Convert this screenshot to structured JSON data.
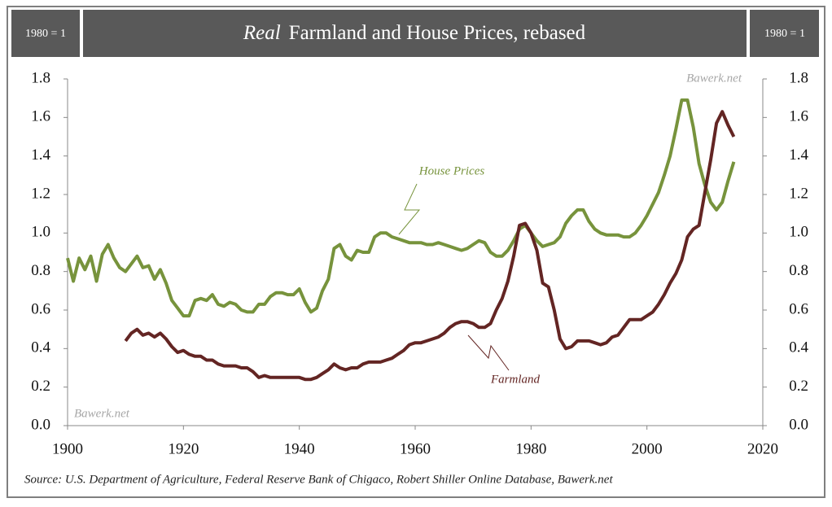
{
  "chart_data": {
    "type": "line",
    "title_emphasis": "Real",
    "title": "Farmland and House Prices, rebased",
    "base_note": "1980 = 1",
    "source": "Source: U.S. Department of Agriculture, Federal Reserve Bank of Chigaco, Robert Shiller Online Database, Bawerk.net",
    "watermark": "Bawerk.net",
    "x": [
      1900,
      1901,
      1902,
      1903,
      1904,
      1905,
      1906,
      1907,
      1908,
      1909,
      1910,
      1911,
      1912,
      1913,
      1914,
      1915,
      1916,
      1917,
      1918,
      1919,
      1920,
      1921,
      1922,
      1923,
      1924,
      1925,
      1926,
      1927,
      1928,
      1929,
      1930,
      1931,
      1932,
      1933,
      1934,
      1935,
      1936,
      1937,
      1938,
      1939,
      1940,
      1941,
      1942,
      1943,
      1944,
      1945,
      1946,
      1947,
      1948,
      1949,
      1950,
      1951,
      1952,
      1953,
      1954,
      1955,
      1956,
      1957,
      1958,
      1959,
      1960,
      1961,
      1962,
      1963,
      1964,
      1965,
      1966,
      1967,
      1968,
      1969,
      1970,
      1971,
      1972,
      1973,
      1974,
      1975,
      1976,
      1977,
      1978,
      1979,
      1980,
      1981,
      1982,
      1983,
      1984,
      1985,
      1986,
      1987,
      1988,
      1989,
      1990,
      1991,
      1992,
      1993,
      1994,
      1995,
      1996,
      1997,
      1998,
      1999,
      2000,
      2001,
      2002,
      2003,
      2004,
      2005,
      2006,
      2007,
      2008,
      2009,
      2010,
      2011,
      2012,
      2013,
      2014,
      2015
    ],
    "series": [
      {
        "name": "House Prices",
        "color": "#77933c",
        "values": [
          0.87,
          0.75,
          0.87,
          0.81,
          0.88,
          0.75,
          0.89,
          0.94,
          0.87,
          0.82,
          0.8,
          0.84,
          0.88,
          0.82,
          0.83,
          0.76,
          0.81,
          0.74,
          0.65,
          0.61,
          0.57,
          0.57,
          0.65,
          0.66,
          0.65,
          0.68,
          0.63,
          0.62,
          0.64,
          0.63,
          0.6,
          0.59,
          0.59,
          0.63,
          0.63,
          0.67,
          0.69,
          0.69,
          0.68,
          0.68,
          0.71,
          0.64,
          0.59,
          0.61,
          0.7,
          0.76,
          0.92,
          0.94,
          0.88,
          0.86,
          0.91,
          0.9,
          0.9,
          0.98,
          1.0,
          1.0,
          0.98,
          0.97,
          0.96,
          0.95,
          0.95,
          0.95,
          0.94,
          0.94,
          0.95,
          0.94,
          0.93,
          0.92,
          0.91,
          0.92,
          0.94,
          0.96,
          0.95,
          0.9,
          0.88,
          0.88,
          0.91,
          0.96,
          1.02,
          1.04,
          1.0,
          0.96,
          0.93,
          0.94,
          0.95,
          0.98,
          1.05,
          1.09,
          1.12,
          1.12,
          1.06,
          1.02,
          1.0,
          0.99,
          0.99,
          0.99,
          0.98,
          0.98,
          1.0,
          1.04,
          1.09,
          1.15,
          1.21,
          1.3,
          1.4,
          1.54,
          1.69,
          1.69,
          1.55,
          1.36,
          1.25,
          1.16,
          1.12,
          1.16,
          1.27,
          1.37
        ]
      },
      {
        "name": "Farmland",
        "color": "#632523",
        "values": [
          null,
          null,
          null,
          null,
          null,
          null,
          null,
          null,
          null,
          null,
          0.44,
          0.48,
          0.5,
          0.47,
          0.48,
          0.46,
          0.48,
          0.45,
          0.41,
          0.38,
          0.39,
          0.37,
          0.36,
          0.36,
          0.34,
          0.34,
          0.32,
          0.31,
          0.31,
          0.31,
          0.3,
          0.3,
          0.28,
          0.25,
          0.26,
          0.25,
          0.25,
          0.25,
          0.25,
          0.25,
          0.25,
          0.24,
          0.24,
          0.25,
          0.27,
          0.29,
          0.32,
          0.3,
          0.29,
          0.3,
          0.3,
          0.32,
          0.33,
          0.33,
          0.33,
          0.34,
          0.35,
          0.37,
          0.39,
          0.42,
          0.43,
          0.43,
          0.44,
          0.45,
          0.46,
          0.48,
          0.51,
          0.53,
          0.54,
          0.54,
          0.53,
          0.51,
          0.51,
          0.53,
          0.6,
          0.66,
          0.75,
          0.88,
          1.04,
          1.05,
          1.0,
          0.91,
          0.74,
          0.72,
          0.6,
          0.45,
          0.4,
          0.41,
          0.44,
          0.44,
          0.44,
          0.43,
          0.42,
          0.43,
          0.46,
          0.47,
          0.51,
          0.55,
          0.55,
          0.55,
          0.57,
          0.59,
          0.63,
          0.68,
          0.74,
          0.79,
          0.86,
          0.98,
          1.02,
          1.04,
          1.21,
          1.38,
          1.57,
          1.63,
          1.56,
          1.5
        ]
      }
    ],
    "xlim": [
      1900,
      2020
    ],
    "xticks": [
      1900,
      1920,
      1940,
      1960,
      1980,
      2000,
      2020
    ],
    "ylim": [
      0,
      1.8
    ],
    "yticks": [
      {
        "value": 0,
        "label": "0.0"
      },
      0.2,
      0.4,
      0.6,
      0.8,
      {
        "value": 1,
        "label": "1.0"
      },
      1.2,
      1.4,
      1.6,
      1.8
    ],
    "y2lim": [
      0,
      1.8
    ],
    "y2ticks": [
      {
        "value": 0,
        "label": "0.0"
      },
      0.2,
      0.4,
      0.6,
      0.8,
      {
        "value": 1,
        "label": "1.0"
      },
      1.2,
      1.4,
      1.6,
      1.8
    ],
    "grid": false
  }
}
